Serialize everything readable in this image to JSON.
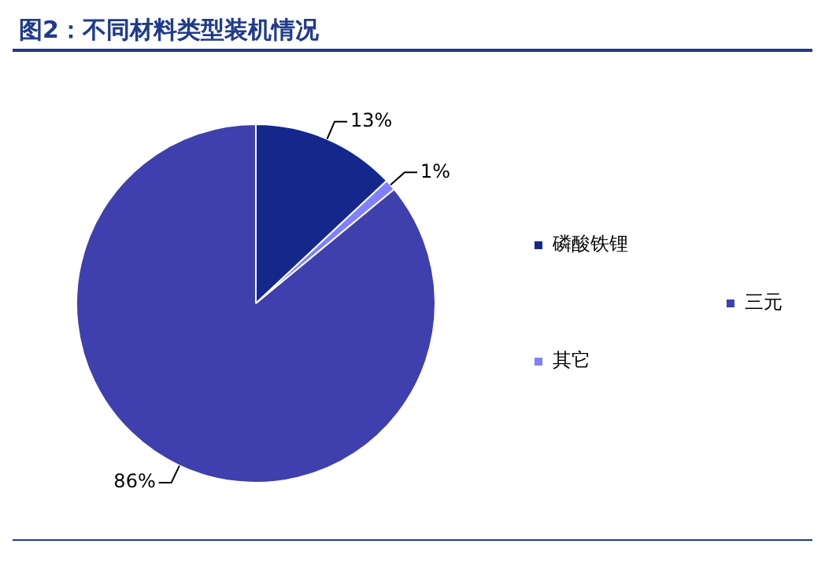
{
  "chart_data": {
    "type": "pie",
    "title": "图2：不同材料类型装机情况",
    "categories": [
      "磷酸铁锂",
      "其它",
      "三元"
    ],
    "values": [
      13,
      1,
      86
    ],
    "colors": [
      "#14288c",
      "#8080ff",
      "#3f3fad"
    ],
    "value_labels": [
      "13%",
      "1%",
      "86%"
    ],
    "legend": "right"
  }
}
